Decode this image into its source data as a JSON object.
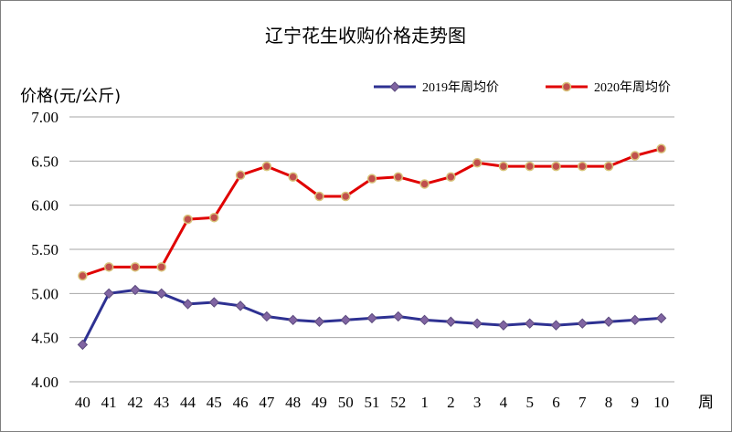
{
  "chart_data": {
    "type": "line",
    "title": "辽宁花生收购价格走势图",
    "ylabel": "价格(元/公斤)",
    "xlabel": "周",
    "ylim": [
      4.0,
      7.0
    ],
    "y_ticks": [
      "4.00",
      "4.50",
      "5.00",
      "5.50",
      "6.00",
      "6.50",
      "7.00"
    ],
    "grid": true,
    "legend_position": "top-right",
    "categories": [
      "40",
      "41",
      "42",
      "43",
      "44",
      "45",
      "46",
      "47",
      "48",
      "49",
      "50",
      "51",
      "52",
      "1",
      "2",
      "3",
      "4",
      "5",
      "6",
      "7",
      "8",
      "9",
      "10"
    ],
    "series": [
      {
        "name": "2019年周均价",
        "color": "#2e3192",
        "marker_color": "#8064a2",
        "marker": "diamond",
        "values": [
          4.42,
          5.0,
          5.04,
          5.0,
          4.88,
          4.9,
          4.86,
          4.74,
          4.7,
          4.68,
          4.7,
          4.72,
          4.74,
          4.7,
          4.68,
          4.66,
          4.64,
          4.66,
          4.64,
          4.66,
          4.68,
          4.7,
          4.72
        ]
      },
      {
        "name": "2020年周均价",
        "color": "#e00000",
        "marker_color": "#c0504d",
        "marker": "circle",
        "values": [
          5.2,
          5.3,
          5.3,
          5.3,
          5.84,
          5.86,
          6.34,
          6.44,
          6.32,
          6.1,
          6.1,
          6.3,
          6.32,
          6.24,
          6.32,
          6.48,
          6.44,
          6.44,
          6.44,
          6.44,
          6.44,
          6.56,
          6.64
        ]
      }
    ]
  }
}
